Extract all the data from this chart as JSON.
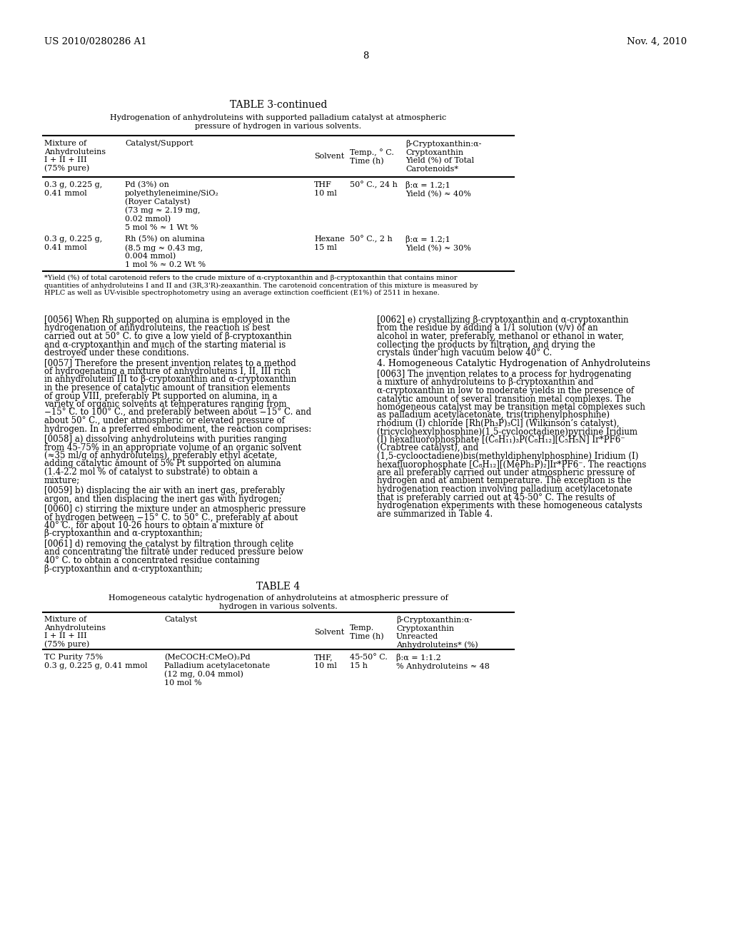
{
  "page_header_left": "US 2010/0280286 A1",
  "page_header_right": "Nov. 4, 2010",
  "page_number": "8",
  "table3_title": "TABLE 3-continued",
  "table3_subtitle": "Hydrogenation of anhydroluteins with supported palladium catalyst at atmospheric\npressure of hydrogen in various solvents.",
  "table3_col_headers": [
    "Mixture of\nAnhydroluteins\nI + II + III\n(75% pure)",
    "Catalyst/Support",
    "Solvent",
    "Temp., ° C.\nTime (h)",
    "β-Cryptoxanthin:α-\nCryptoxanthin\nYield (%) of Total\nCarotenoids*"
  ],
  "table3_rows": [
    [
      "0.3 g, 0.225 g,\n0.41 mmol",
      "Pd (3%) on\npolyethyleneimine/SiO₂\n(Royer Catalyst)\n(73 mg ≈ 2.19 mg,\n0.02 mmol)\n5 mol % ≈ 1 Wt %",
      "THF\n10 ml",
      "50° C., 24 h",
      "β:α = 1.2;1\nYield (%) ≈ 40%"
    ],
    [
      "0.3 g, 0.225 g,\n0.41 mmol",
      "Rh (5%) on alumina\n(8.5 mg ≈ 0.43 mg,\n0.004 mmol)\n1 mol % ≈ 0.2 Wt %",
      "Hexane\n15 ml",
      "50° C., 2 h",
      "β:α = 1.2;1\nYield (%) ≈ 30%"
    ]
  ],
  "table3_footnote": "*Yield (%) of total carotenoid refers to the crude mixture of α-cryptoxanthin and β-cryptoxanthin that contains minor\nquantities of anhydroluteins I and II and (3R,3'R)-zeaxanthin. The carotenoid concentration of this mixture is measured by\nHPLC as well as UV-visible spectrophotometry using an average extinction coefficient (E1%) of 2511 in hexane.",
  "para_0056": "[0056]   When Rh supported on alumina is employed in the hydrogenation of anhydroluteins, the reaction is best carried out at 50° C. to give a low yield of β-cryptoxanthin and α-cryptoxanthin and much of the starting material is destroyed under these conditions.",
  "para_0057": "[0057]   Therefore the present invention relates to a method of hydrogenating a mixture of anhydroluteins I, II, III rich in anhydrolutein III to β-cryptoxanthin and α-cryptoxanthin in the presence of catalytic amount of transition elements of group VIII, preferably Pt supported on alumina, in a variety of organic solvents at temperatures ranging from −15° C. to 100° C., and preferably between about −15° C. and about 50° C., under atmospheric or elevated pressure of hydrogen. In a preferred embodiment, the reaction comprises:",
  "para_0058": "[0058]   a) dissolving anhydroluteins with purities ranging from 45-75% in an appropriate volume of an organic solvent (≈35 ml/g of anhydroluteins), preferably ethyl acetate, adding catalytic amount of 5% Pt supported on alumina (1.4-2.2 mol % of catalyst to substrate) to obtain a mixture;",
  "para_0059": "[0059]   b) displacing the air with an inert gas, preferably argon, and then displacing the inert gas with hydrogen;",
  "para_0060": "[0060]   c) stirring the mixture under an atmospheric pressure of hydrogen between −15° C. to 50° C., preferably at about 40° C., for about 10-26 hours to obtain a mixture of β-cryptoxanthin and α-cryptoxanthin;",
  "para_0061": "[0061]   d) removing the catalyst by filtration through celite and concentrating the filtrate under reduced pressure below 40° C. to obtain a concentrated residue containing β-cryptoxanthin and α-cryptoxanthin;",
  "para_0062": "[0062]   e) crystallizing β-cryptoxanthin and α-cryptoxanthin from the residue by adding a 1/1 solution (v/v) of an alcohol in water, preferably, methanol or ethanol in water, collecting the products by filtration, and drying the crystals under high vacuum below 40° C.",
  "section4_title": "4. Homogeneous Catalytic Hydrogenation of Anhydroluteins",
  "para_0063": "[0063]   The invention relates to a process for hydrogenating a mixture of anhydroluteins to β-cryptoxanthin and α-cryptoxanthin in low to moderate yields in the presence of catalytic amount of several transition metal complexes. The homogeneous catalyst may be transition metal complexes such as palladium acetylacetonate, tris(triphenylphosphine) rhodium (I) chloride [Rh(Ph₃P)₃Cl] (Wilkinson’s catalyst), (tricyclohexylphosphine)(1,5-cyclooctadiene)pyridine Iridium (I) hexafluorophosphate [(C₆H₁₁)₃P(C₈H₁₂][C₅H₅N] Ir*PF6⁻ (Crabtree catalyst), and (1,5-cyclooctadiene)bis(methyldiphenylphosphine) Iridium (I) hexafluorophosphate [C₈H₁₂][(MePh₂P)₂]Ir*PF6⁻. The reactions are all preferably carried out under atmospheric pressure of hydrogen and at ambient temperature. The exception is the hydrogenation reaction involving palladium acetylacetonate that is preferably carried out at 45-50° C. The results of hydrogenation experiments with these homogeneous catalysts are summarized in Table 4.",
  "table4_title": "TABLE 4",
  "table4_subtitle": "Homogeneous catalytic hydrogenation of anhydroluteins at atmospheric pressure of\nhydrogen in various solvents.",
  "table4_col_headers": [
    "Mixture of\nAnhydroluteins\nI + II + III\n(75% pure)",
    "Catalyst",
    "Solvent",
    "Temp.\nTime (h)",
    "β-Cryptoxanthin:α-\nCryptoxanthin\nUnreacted\nAnhydroluteins* (%)"
  ],
  "table4_rows": [
    [
      "TC Purity 75%\n0.3 g, 0.225 g, 0.41 mmol",
      "(MeCOCH:CMeO)₂Pd\nPalladium acetylacetonate\n(12 mg, 0.04 mmol)\n10 mol %",
      "THF,\n10 ml",
      "45-50° C.\n15 h",
      "β:α = 1:1.2\n% Anhydroluteins ≈ 48"
    ]
  ]
}
